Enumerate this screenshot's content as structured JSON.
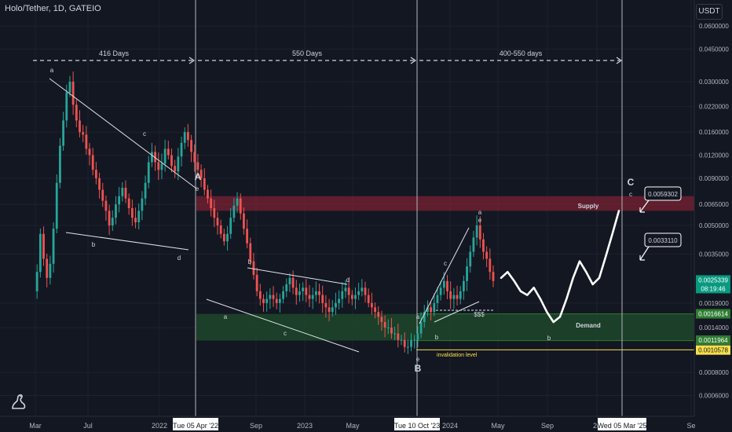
{
  "header": {
    "title": "Holo/Tether, 1D, GATEIO",
    "currency_button": "USDT"
  },
  "chart_data": {
    "type": "candlestick",
    "title": "Holo/Tether, 1D, GATEIO",
    "y_scale": "log",
    "ylim": [
      0.0005,
      0.07
    ],
    "x_labels": [
      "Mar",
      "Jul",
      "2022",
      "Sep",
      "2023",
      "May",
      "2024",
      "May",
      "Sep",
      "20",
      "Se"
    ],
    "x_highlight_labels": [
      "Tue 05 Apr '22",
      "Tue 10 Oct '23",
      "Wed 05 Mar '25"
    ],
    "y_ticks": [
      "0.0600000",
      "0.0450000",
      "0.0300000",
      "0.0220000",
      "0.0160000",
      "0.0120000",
      "0.0090000",
      "0.0065000",
      "0.0050000",
      "0.0035000",
      "0.0019000",
      "0.0014000",
      "0.0008000",
      "0.0006000"
    ],
    "price_tags": [
      {
        "label": "0.0025339",
        "sub": "08:19:46",
        "value": 0.0025339,
        "color": "#089981"
      },
      {
        "label": "0.0016614",
        "value": 0.0016614,
        "color": "#2e7d32"
      },
      {
        "label": "0.0011964",
        "value": 0.0011964,
        "color": "#2e7d32"
      },
      {
        "label": "0.0010578",
        "value": 0.0010578,
        "color": "#f7e04b"
      }
    ],
    "callouts": [
      "0.0059302",
      "0.0033110"
    ],
    "zones": [
      {
        "name": "Supply",
        "low": 0.006,
        "high": 0.0072,
        "color": "#7a2233"
      },
      {
        "name": "Demand",
        "low": 0.00119,
        "high": 0.00166,
        "color": "#1f4d2b"
      }
    ],
    "levels": [
      {
        "name": "invalidation level",
        "value": 0.00106,
        "color": "#f7e04b"
      }
    ],
    "durations": [
      "416 Days",
      "550 Days",
      "400-550 days"
    ],
    "wave_labels": [
      "a",
      "b",
      "c",
      "d",
      "e",
      "A",
      "a",
      "b",
      "c",
      "d",
      "e",
      "B",
      "a",
      "b",
      "c",
      "e",
      "C",
      "c",
      "a",
      "b",
      "$$$"
    ],
    "series": [
      {
        "values": [
          0.0022,
          0.0028,
          0.0045,
          0.0033,
          0.0026,
          0.0031,
          0.0048,
          0.0085,
          0.0135,
          0.0185,
          0.0262,
          0.03,
          0.0225,
          0.0185,
          0.016,
          0.0155,
          0.013,
          0.012,
          0.01,
          0.009,
          0.0078,
          0.0068,
          0.006,
          0.005,
          0.0055,
          0.0065,
          0.0072,
          0.008,
          0.007,
          0.0062,
          0.0055,
          0.0052,
          0.006,
          0.007,
          0.0085,
          0.011,
          0.0125,
          0.011,
          0.01,
          0.0108,
          0.013,
          0.012,
          0.0105,
          0.0098,
          0.0118,
          0.014,
          0.016,
          0.0145,
          0.0125,
          0.011,
          0.01,
          0.009,
          0.0078,
          0.007,
          0.0062,
          0.0055,
          0.005,
          0.0045,
          0.0041,
          0.0045,
          0.0055,
          0.0064,
          0.007,
          0.0058,
          0.0048,
          0.004,
          0.0032,
          0.0027,
          0.0022,
          0.002,
          0.0019,
          0.002,
          0.0021,
          0.002,
          0.0019,
          0.002,
          0.0022,
          0.0024,
          0.0026,
          0.0023,
          0.0021,
          0.0022,
          0.0023,
          0.0021,
          0.002,
          0.0021,
          0.0022,
          0.0021,
          0.0019,
          0.0018,
          0.0017,
          0.0018,
          0.0019,
          0.002,
          0.0022,
          0.0023,
          0.0021,
          0.002,
          0.0021,
          0.0022,
          0.0023,
          0.0021,
          0.0019,
          0.0018,
          0.0017,
          0.0016,
          0.0015,
          0.0014,
          0.0014,
          0.0013,
          0.0013,
          0.0012,
          0.0012,
          0.0011,
          0.0011,
          0.0012,
          0.0012,
          0.0013,
          0.0015,
          0.0017,
          0.0018,
          0.0017,
          0.0019,
          0.0021,
          0.0023,
          0.0025,
          0.0022,
          0.002,
          0.0021,
          0.002,
          0.0022,
          0.0025,
          0.003,
          0.0036,
          0.0043,
          0.005,
          0.0042,
          0.0036,
          0.0033,
          0.0028,
          0.0025
        ]
      },
      {
        "name": "projection",
        "values": [
          0.0026,
          0.0028,
          0.0025,
          0.0022,
          0.0021,
          0.0023,
          0.002,
          0.0017,
          0.0015,
          0.0016,
          0.002,
          0.0026,
          0.0032,
          0.0028,
          0.0024,
          0.0026,
          0.0034,
          0.0045,
          0.006
        ]
      }
    ]
  }
}
